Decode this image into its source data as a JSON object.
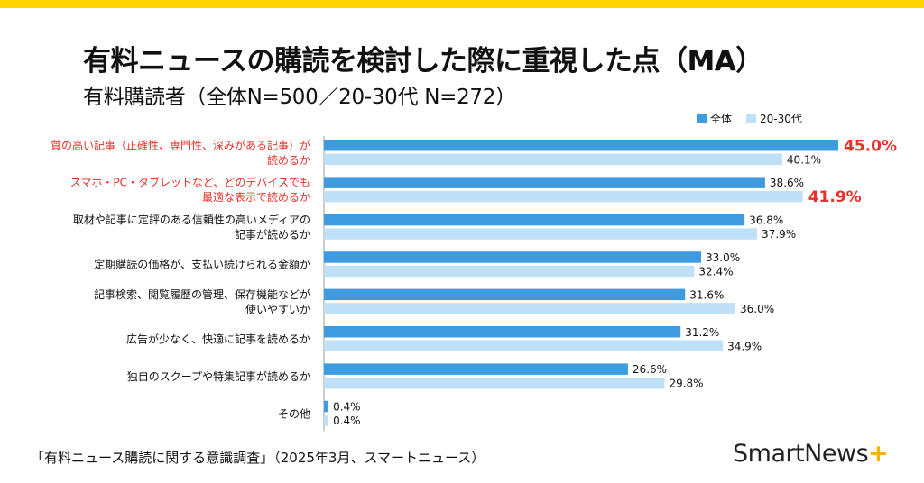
{
  "header": {
    "title": "有料ニュースの購読を検討した際に重視した点（MA）",
    "subtitle": "有料購読者（全体N=500／20-30代 N=272）"
  },
  "footer": {
    "source": "「有料ニュース購読に関する意識調査」（2025年3月、スマートニュース）",
    "logo_text": "SmartNews",
    "logo_plus": "+"
  },
  "colors": {
    "series_all": "#3f9be0",
    "series_young": "#bfe0f7",
    "highlight": "#e8302a",
    "top_bar": "#ffd400"
  },
  "chart_data": {
    "type": "bar",
    "orientation": "horizontal",
    "categories": [
      [
        "質の高い記事（正確性、専門性、深みがある記事）が",
        "読めるか"
      ],
      [
        "スマホ・PC・タブレットなど、どのデバイスでも",
        "最適な表示で読めるか"
      ],
      [
        "取材や記事に定評のある信頼性の高いメディアの",
        "記事が読めるか"
      ],
      [
        "定期購読の価格が、支払い続けられる金額か"
      ],
      [
        "記事検索、閲覧履歴の管理、保存機能などが",
        "使いやすいか"
      ],
      [
        "広告が少なく、快適に記事を読めるか"
      ],
      [
        "独自のスクープや特集記事が読めるか"
      ],
      [
        "その他"
      ]
    ],
    "highlighted_categories": [
      0,
      1
    ],
    "series": [
      {
        "name": "全体",
        "values": [
          45.0,
          38.6,
          36.8,
          33.0,
          31.6,
          31.2,
          26.6,
          0.4
        ],
        "labels": [
          "45.0%",
          "38.6%",
          "36.8%",
          "33.0%",
          "31.6%",
          "31.2%",
          "26.6%",
          "0.4%"
        ]
      },
      {
        "name": "20-30代",
        "values": [
          40.1,
          41.9,
          37.9,
          32.4,
          36.0,
          34.9,
          29.8,
          0.4
        ],
        "labels": [
          "40.1%",
          "41.9%",
          "37.9%",
          "32.4%",
          "36.0%",
          "34.9%",
          "29.8%",
          "0.4%"
        ]
      }
    ],
    "highlighted_values": [
      [
        0,
        0
      ],
      [
        1,
        1
      ]
    ],
    "unit": "%",
    "xlim": [
      0,
      45
    ],
    "legend_position": "top-right",
    "grid": false
  }
}
